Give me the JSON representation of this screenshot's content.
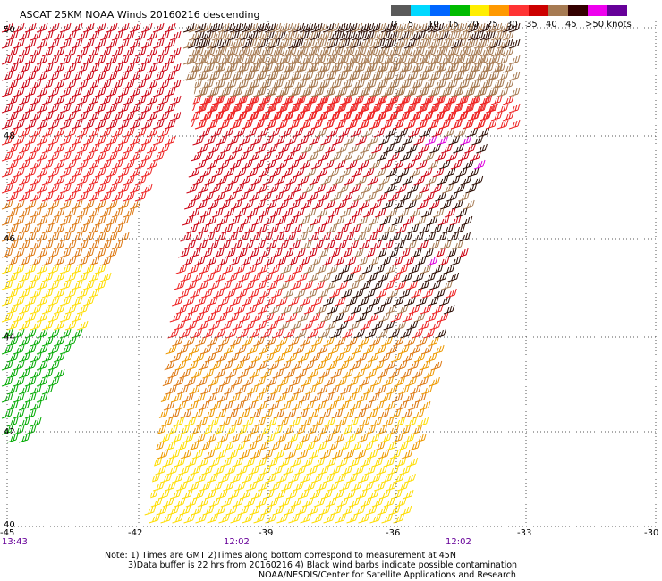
{
  "title": "ASCAT 25KM NOAA Winds 20160216 descending",
  "legend": {
    "labels": [
      "0",
      "5",
      "10",
      "15",
      "20",
      "25",
      "30",
      "35",
      "40",
      "45",
      ">50 knots"
    ],
    "colors": [
      "#5a5a5a",
      "#00d8ff",
      "#0066ff",
      "#00bb00",
      "#ffee00",
      "#ff9900",
      "#ff3333",
      "#cc0000",
      "#a67a52",
      "#330000",
      "#ee00ee",
      "#660099"
    ]
  },
  "map": {
    "lat_labels": [
      "50",
      "48",
      "46",
      "44",
      "42",
      "40"
    ],
    "lon_labels": [
      "-45",
      "-42",
      "-39",
      "-36",
      "-33",
      "-30"
    ],
    "pass_times": [
      "13:43",
      "12:02",
      "12:02"
    ]
  },
  "notes": {
    "line1": "Note: 1) Times are GMT 2)Times along bottom correspond to measurement at 45N",
    "line2": "3)Data buffer is 22 hrs from 20160216 4) Black wind barbs indicate possible contamination",
    "line3": "NOAA/NESDIS/Center for Satellite Applications and Research"
  }
}
